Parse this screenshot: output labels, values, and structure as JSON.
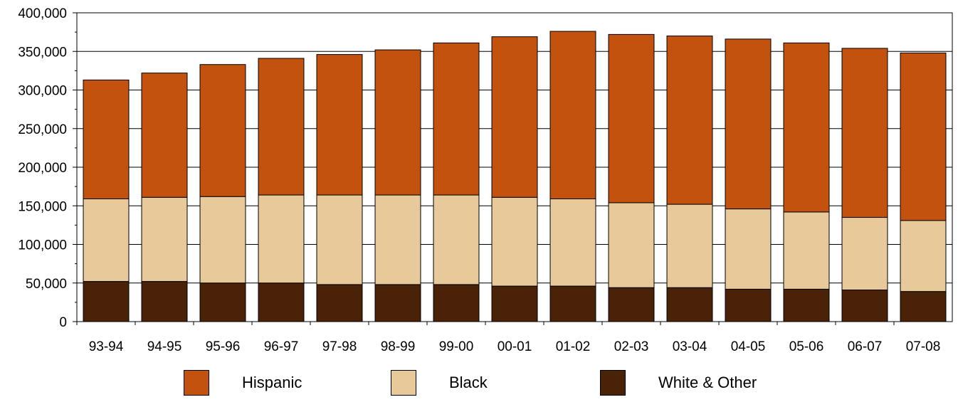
{
  "chart_data": {
    "type": "bar",
    "stacked": true,
    "categories": [
      "93-94",
      "94-95",
      "95-96",
      "96-97",
      "97-98",
      "98-99",
      "99-00",
      "00-01",
      "01-02",
      "02-03",
      "03-04",
      "04-05",
      "05-06",
      "06-07",
      "07-08"
    ],
    "series": [
      {
        "name": "White & Other",
        "color": "#4a2208",
        "values": [
          52000,
          52000,
          50000,
          50000,
          48000,
          48000,
          48000,
          46000,
          46000,
          44000,
          44000,
          42000,
          42000,
          41000,
          39000
        ]
      },
      {
        "name": "Black",
        "color": "#e8c99a",
        "values": [
          107000,
          109000,
          112000,
          114000,
          116000,
          116000,
          116000,
          115000,
          113000,
          110000,
          108000,
          104000,
          100000,
          94000,
          92000
        ]
      },
      {
        "name": "Hispanic",
        "color": "#c4520f",
        "values": [
          154000,
          161000,
          171000,
          177000,
          182000,
          188000,
          197000,
          208000,
          217000,
          218000,
          218000,
          220000,
          219000,
          219000,
          217000
        ]
      }
    ],
    "y_ticks": [
      "0",
      "50,000",
      "100,000",
      "150,000",
      "200,000",
      "250,000",
      "300,000",
      "350,000",
      "400,000"
    ],
    "ylim": [
      0,
      400000
    ],
    "grid": "horizontal",
    "legend_position": "bottom",
    "legend_order": [
      "Hispanic",
      "Black",
      "White & Other"
    ],
    "title": "",
    "xlabel": "",
    "ylabel": ""
  }
}
